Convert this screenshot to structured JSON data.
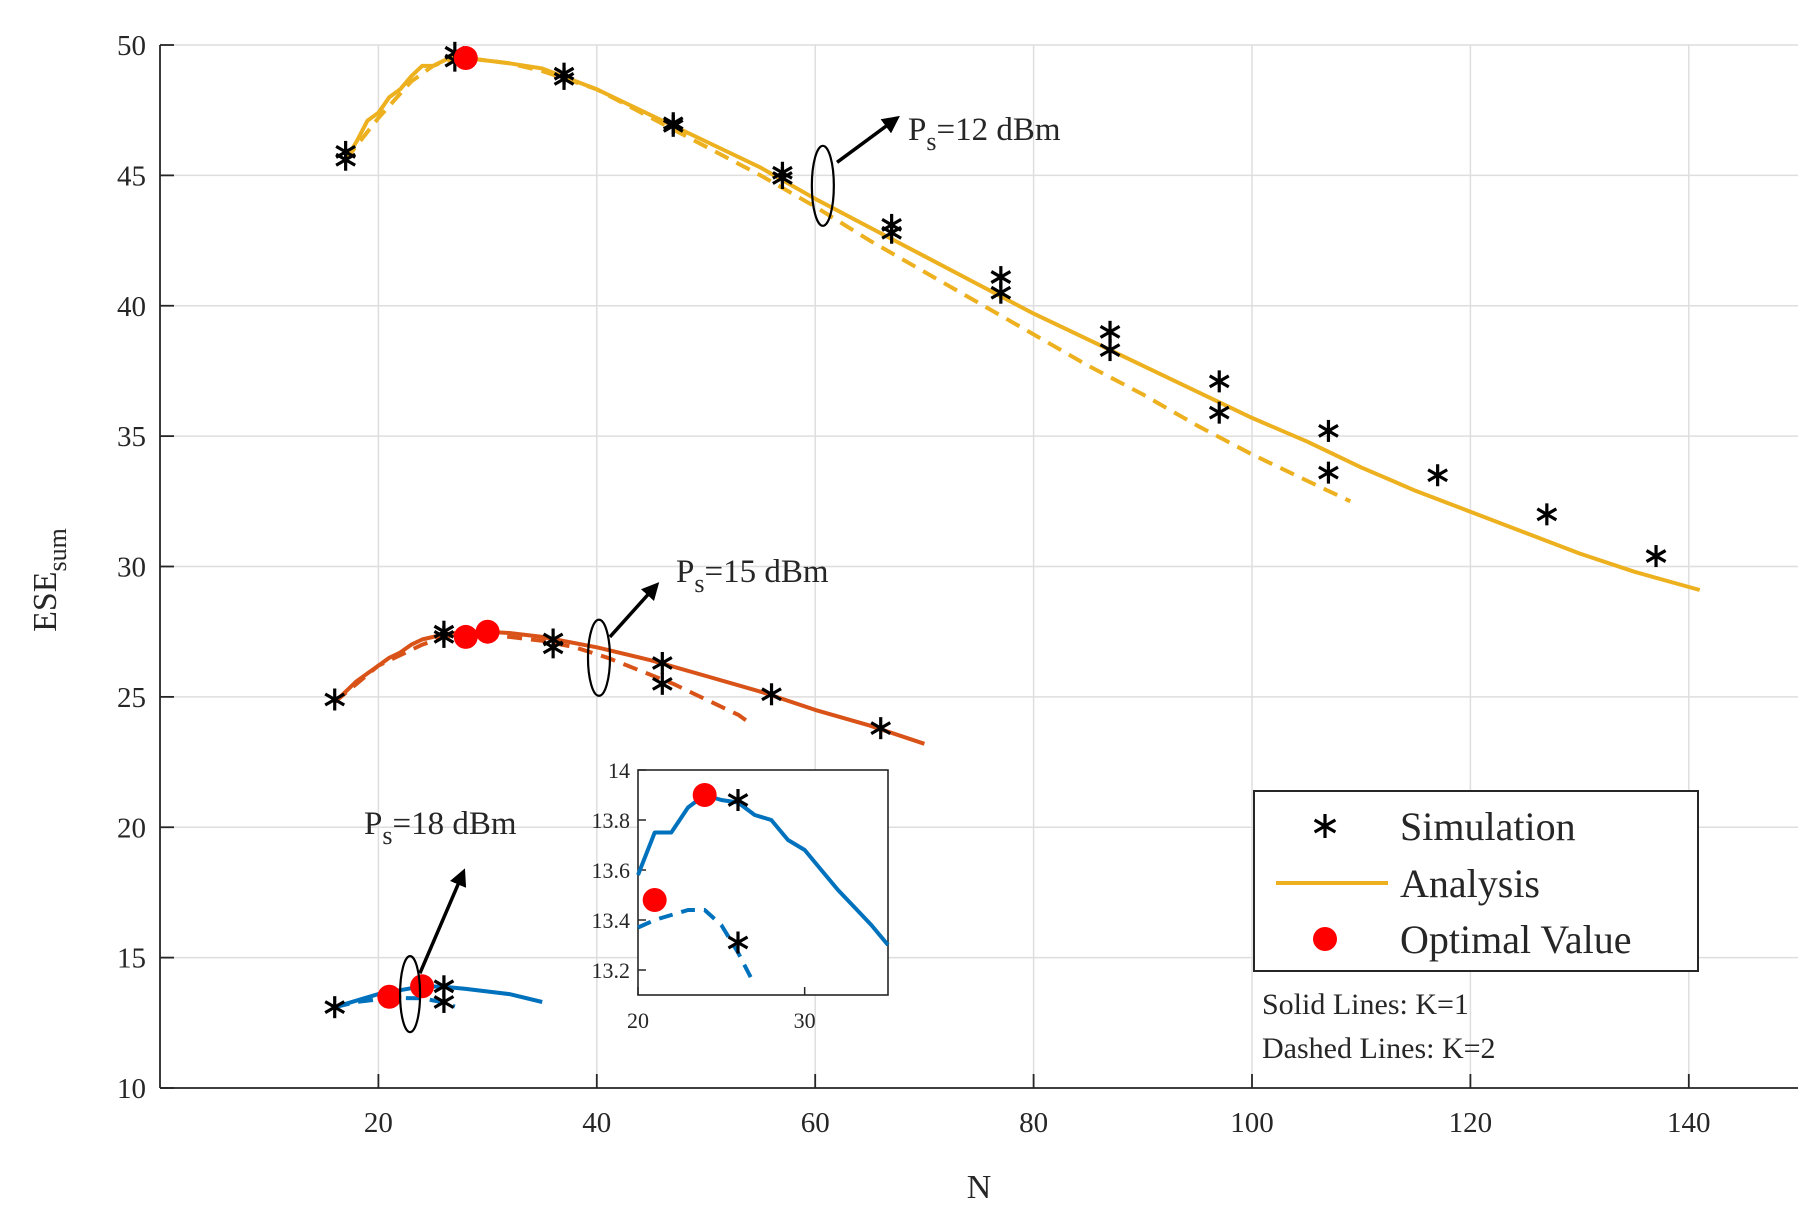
{
  "chart_data": {
    "type": "line",
    "title": "",
    "xlabel": "N",
    "ylabel": "ESE",
    "ylabel_sub": "sum",
    "xlim": [
      0,
      150
    ],
    "ylim": [
      10,
      50
    ],
    "xticks": [
      20,
      40,
      60,
      80,
      100,
      120,
      140
    ],
    "yticks": [
      10,
      15,
      20,
      25,
      30,
      35,
      40,
      45,
      50
    ],
    "grid": true,
    "legend": {
      "position": "lower-right",
      "entries": [
        "Simulation",
        "Analysis",
        "Optimal Value"
      ]
    },
    "notes": [
      "Solid Lines: K=1",
      "Dashed Lines: K=2"
    ],
    "colors": {
      "ps12": "#EDB120",
      "ps15": "#D95319",
      "ps18": "#0072BD",
      "optimal": "#FF0000",
      "simulation": "#000000"
    },
    "series": [
      {
        "group": "12",
        "style": "solid",
        "x": [
          17,
          18,
          19,
          20,
          21,
          22,
          23,
          24,
          25,
          26,
          27,
          28,
          30,
          32,
          35,
          40,
          45,
          50,
          55,
          60,
          65,
          70,
          75,
          80,
          85,
          90,
          95,
          100,
          105,
          110,
          115,
          120,
          125,
          130,
          135,
          141
        ],
        "y": [
          45.6,
          46.3,
          47.1,
          47.4,
          48.0,
          48.3,
          48.8,
          49.2,
          49.2,
          49.4,
          49.6,
          49.5,
          49.4,
          49.3,
          49.1,
          48.3,
          47.3,
          46.3,
          45.3,
          44.1,
          43.0,
          41.9,
          40.8,
          39.7,
          38.7,
          37.7,
          36.7,
          35.7,
          34.8,
          33.8,
          32.9,
          32.1,
          31.3,
          30.5,
          29.8,
          29.1
        ]
      },
      {
        "group": "12",
        "style": "dashed",
        "x": [
          17,
          20,
          23,
          25,
          27,
          28,
          30,
          32,
          35,
          40,
          45,
          50,
          55,
          60,
          65,
          70,
          75,
          80,
          85,
          90,
          95,
          100,
          105,
          109
        ],
        "y": [
          45.6,
          47.2,
          48.6,
          49.2,
          49.5,
          49.5,
          49.4,
          49.3,
          49.0,
          48.3,
          47.2,
          46.1,
          45.0,
          43.8,
          42.5,
          41.3,
          40.1,
          38.9,
          37.7,
          36.6,
          35.4,
          34.3,
          33.3,
          32.5
        ]
      },
      {
        "group": "15",
        "style": "solid",
        "x": [
          16,
          17,
          18,
          19,
          20,
          21,
          22,
          23,
          24,
          25,
          26,
          27,
          28,
          30,
          32,
          35,
          40,
          45,
          50,
          55,
          60,
          65,
          70
        ],
        "y": [
          24.8,
          25.2,
          25.6,
          25.9,
          26.2,
          26.5,
          26.7,
          27.0,
          27.2,
          27.3,
          27.4,
          27.45,
          27.5,
          27.5,
          27.45,
          27.3,
          26.9,
          26.4,
          25.8,
          25.2,
          24.5,
          23.9,
          23.2
        ]
      },
      {
        "group": "15",
        "style": "dashed",
        "x": [
          16,
          18,
          20,
          22,
          24,
          26,
          28,
          30,
          32,
          35,
          38,
          41,
          44,
          47,
          50,
          53,
          54
        ],
        "y": [
          24.8,
          25.5,
          26.2,
          26.6,
          27.0,
          27.3,
          27.4,
          27.35,
          27.3,
          27.15,
          26.9,
          26.5,
          26.0,
          25.5,
          24.9,
          24.3,
          24.0
        ]
      },
      {
        "group": "18",
        "style": "solid",
        "x": [
          16,
          18,
          20,
          22,
          24,
          26,
          28,
          30,
          32,
          35
        ],
        "y": [
          13.1,
          13.35,
          13.6,
          13.75,
          13.9,
          13.88,
          13.8,
          13.7,
          13.6,
          13.3
        ]
      },
      {
        "group": "18",
        "style": "dashed",
        "x": [
          16,
          18,
          20,
          22,
          24,
          26,
          27
        ],
        "y": [
          13.1,
          13.3,
          13.4,
          13.45,
          13.44,
          13.28,
          13.12
        ]
      }
    ],
    "simulation_points": [
      {
        "x": 17,
        "y": 45.9
      },
      {
        "x": 17,
        "y": 45.6
      },
      {
        "x": 27,
        "y": 49.7
      },
      {
        "x": 27,
        "y": 49.4
      },
      {
        "x": 37,
        "y": 48.9
      },
      {
        "x": 37,
        "y": 48.7
      },
      {
        "x": 47,
        "y": 47.0
      },
      {
        "x": 47,
        "y": 46.9
      },
      {
        "x": 57,
        "y": 45.1
      },
      {
        "x": 57,
        "y": 44.9
      },
      {
        "x": 67,
        "y": 43.1
      },
      {
        "x": 67,
        "y": 42.8
      },
      {
        "x": 77,
        "y": 41.1
      },
      {
        "x": 77,
        "y": 40.5
      },
      {
        "x": 87,
        "y": 39.0
      },
      {
        "x": 87,
        "y": 38.3
      },
      {
        "x": 97,
        "y": 37.1
      },
      {
        "x": 97,
        "y": 35.9
      },
      {
        "x": 107,
        "y": 35.2
      },
      {
        "x": 107,
        "y": 33.6
      },
      {
        "x": 117,
        "y": 33.5
      },
      {
        "x": 127,
        "y": 32.0
      },
      {
        "x": 137,
        "y": 30.4
      },
      {
        "x": 16,
        "y": 24.9
      },
      {
        "x": 26,
        "y": 27.5
      },
      {
        "x": 26,
        "y": 27.3
      },
      {
        "x": 36,
        "y": 27.2
      },
      {
        "x": 36,
        "y": 26.9
      },
      {
        "x": 46,
        "y": 26.3
      },
      {
        "x": 46,
        "y": 25.5
      },
      {
        "x": 56,
        "y": 25.1
      },
      {
        "x": 66,
        "y": 23.8
      },
      {
        "x": 16,
        "y": 13.1
      },
      {
        "x": 26,
        "y": 13.9
      },
      {
        "x": 26,
        "y": 13.3
      }
    ],
    "optimal_points": [
      {
        "x": 28,
        "y": 49.5
      },
      {
        "x": 28,
        "y": 27.3
      },
      {
        "x": 30,
        "y": 27.5
      },
      {
        "x": 21,
        "y": 13.5
      },
      {
        "x": 24,
        "y": 13.9
      }
    ],
    "annotations": [
      {
        "group": "12",
        "prefix": "P",
        "sub": "s",
        "text": "=12 dBm"
      },
      {
        "group": "15",
        "prefix": "P",
        "sub": "s",
        "text": "=15 dBm"
      },
      {
        "group": "18",
        "prefix": "P",
        "sub": "s",
        "text": "=18 dBm"
      }
    ],
    "inset": {
      "xlim": [
        20,
        35
      ],
      "ylim": [
        13.1,
        14.0
      ],
      "xticks": [
        20,
        30
      ],
      "yticks": [
        13.2,
        13.4,
        13.6,
        13.8,
        14
      ],
      "series": [
        {
          "style": "solid",
          "x": [
            20,
            21,
            22,
            23,
            24,
            25,
            26,
            27,
            28,
            29,
            30,
            31,
            32,
            33,
            34,
            35
          ],
          "y": [
            13.58,
            13.75,
            13.75,
            13.85,
            13.9,
            13.88,
            13.87,
            13.82,
            13.8,
            13.72,
            13.68,
            13.6,
            13.52,
            13.45,
            13.38,
            13.3
          ]
        },
        {
          "style": "dashed",
          "x": [
            20,
            21,
            22,
            23,
            24,
            25,
            26,
            27
          ],
          "y": [
            13.37,
            13.4,
            13.42,
            13.44,
            13.44,
            13.38,
            13.27,
            13.14
          ]
        }
      ],
      "simulation_points": [
        {
          "x": 26,
          "y": 13.88
        },
        {
          "x": 26,
          "y": 13.31
        }
      ],
      "optimal_points": [
        {
          "x": 24,
          "y": 13.9
        },
        {
          "x": 21,
          "y": 13.48
        }
      ]
    }
  }
}
